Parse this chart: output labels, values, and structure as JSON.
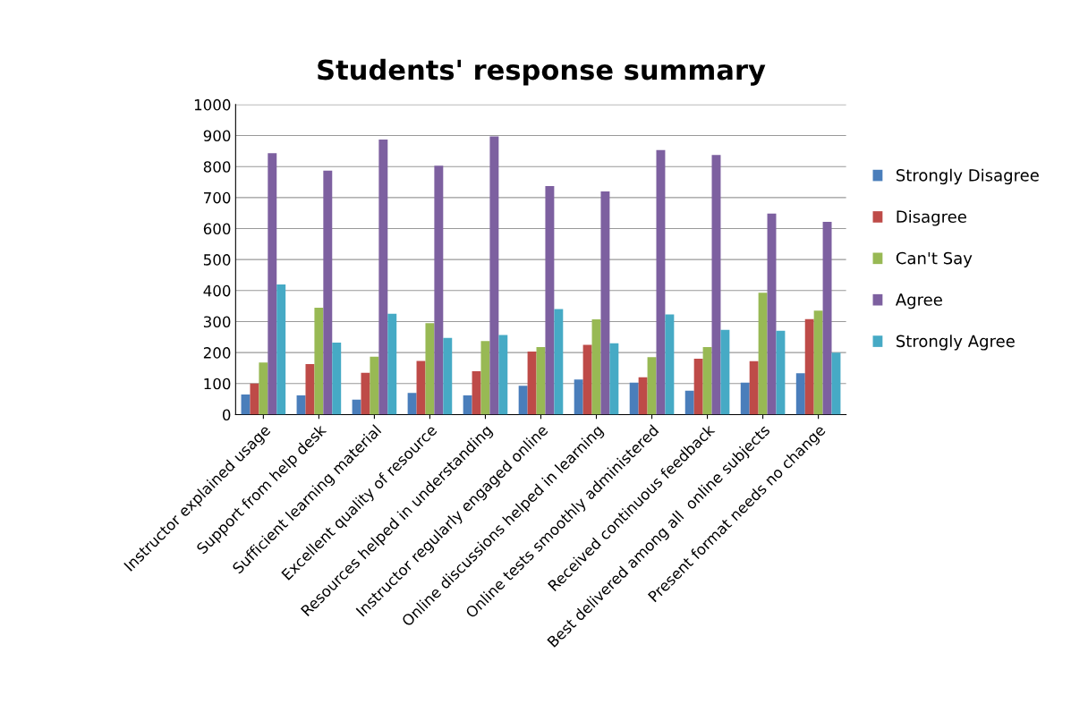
{
  "chart_data": {
    "type": "bar",
    "title": "Students' response summary",
    "categories": [
      "Instructor explained usage",
      "Support from help desk",
      "Sufficient learning material",
      "Excellent quality of resource",
      "Resources helped in understanding",
      "Instructor regularly engaged online",
      "Online discussions helped in learning",
      "Online tests smoothly administered",
      "Received continuous feedback",
      "Best delivered among all  online subjects",
      "Present format needs no change"
    ],
    "series": [
      {
        "name": "Strongly Disagree",
        "color": "#4a7ebb",
        "values": [
          65,
          62,
          48,
          70,
          62,
          93,
          113,
          103,
          77,
          103,
          133
        ]
      },
      {
        "name": "Disagree",
        "color": "#be4b48",
        "values": [
          100,
          163,
          135,
          173,
          140,
          203,
          225,
          120,
          180,
          172,
          308
        ]
      },
      {
        "name": "Can't Say",
        "color": "#98b954",
        "values": [
          168,
          345,
          187,
          295,
          237,
          218,
          307,
          185,
          218,
          393,
          335
        ]
      },
      {
        "name": "Agree",
        "color": "#7d60a0",
        "values": [
          843,
          787,
          887,
          803,
          897,
          737,
          720,
          853,
          837,
          648,
          622
        ]
      },
      {
        "name": "Strongly Agree",
        "color": "#46aac5",
        "values": [
          420,
          232,
          325,
          247,
          257,
          340,
          230,
          323,
          273,
          270,
          200
        ]
      }
    ],
    "ylim": [
      0,
      1000
    ],
    "yticks": [
      0,
      100,
      200,
      300,
      400,
      500,
      600,
      700,
      800,
      900,
      1000
    ],
    "grid": "y",
    "legend": "right"
  }
}
